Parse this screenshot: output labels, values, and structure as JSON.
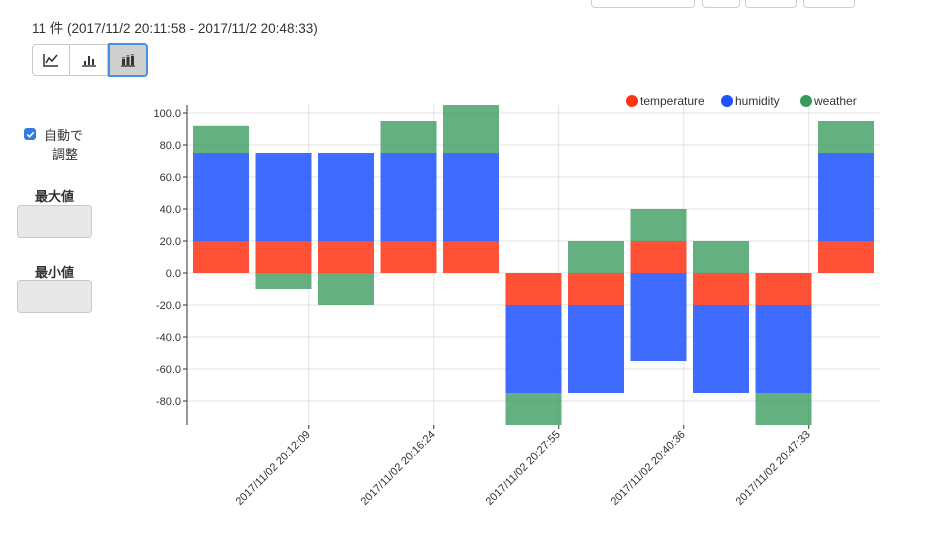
{
  "header": {
    "record_info": "11 件 (2017/11/2 20:11:58 - 2017/11/2 20:48:33)"
  },
  "toolbar": {
    "modes": [
      {
        "name": "line-chart-icon"
      },
      {
        "name": "bar-chart-icon"
      },
      {
        "name": "stacked-bar-chart-icon",
        "selected": true
      }
    ]
  },
  "sidebar": {
    "auto_adjust_line1": "自動で",
    "auto_adjust_line2": "調整",
    "auto_adjust_checked": true,
    "max_label": "最大値",
    "min_label": "最小値",
    "max_value": "",
    "min_value": ""
  },
  "chart_data": {
    "type": "bar",
    "stacked": true,
    "categories": [
      "1",
      "2",
      "3",
      "4",
      "5",
      "6",
      "7",
      "8",
      "9",
      "10",
      "11"
    ],
    "x_tick_labels": [
      "2017/11/02 20:12:09",
      "2017/11/02 20:16:24",
      "2017/11/02 20:27:55",
      "2017/11/02 20:40:36",
      "2017/11/02 20:47:33"
    ],
    "y_tick_labels": [
      "100.0",
      "80.0",
      "60.0",
      "40.0",
      "20.0",
      "0.0",
      "-20.0",
      "-40.0",
      "-60.0",
      "-80.0"
    ],
    "ylim": [
      -95,
      105
    ],
    "grid": true,
    "legend_position": "top-right",
    "series": [
      {
        "name": "temperature",
        "color": "#ff3312",
        "values": [
          20,
          20,
          20,
          20,
          20,
          -20,
          -20,
          20,
          -20,
          -20,
          20
        ]
      },
      {
        "name": "humidity",
        "color": "#1f51ff",
        "values": [
          55,
          55,
          55,
          55,
          55,
          -55,
          -55,
          -55,
          -55,
          -55,
          55
        ]
      },
      {
        "name": "weather",
        "color": "#3a9a5c",
        "values": [
          17,
          -10,
          -20,
          20,
          30,
          -20,
          20,
          20,
          20,
          -20,
          20
        ]
      }
    ]
  }
}
